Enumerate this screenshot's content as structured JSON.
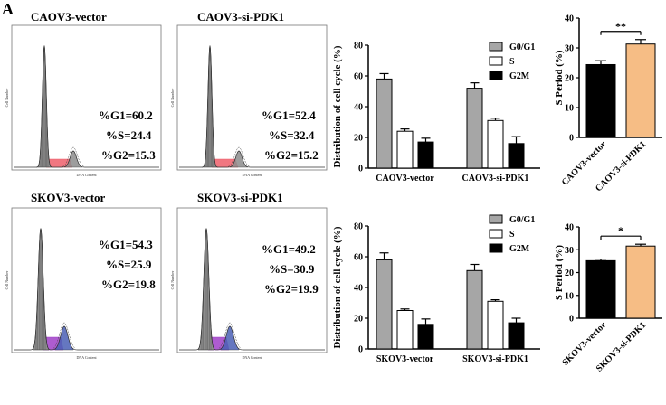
{
  "panel_letter": "A",
  "colors": {
    "g0g1": "#a6a6a6",
    "s": "#ffffff",
    "g2m": "#000000",
    "vector": "#000000",
    "pdk1": "#f6bd85",
    "peak": "#8c8c8c",
    "s_red": "#ee5f6b",
    "s_purple": "#a040c8",
    "g2_blue": "#4a5fb5"
  },
  "flow_panels": [
    {
      "title": "CAOV3-vector",
      "g1": "%G1=60.2",
      "s": "%S=24.4",
      "g2": "%G2=15.3",
      "y_label": "Cell Number",
      "x_label": "DNA Content"
    },
    {
      "title": "CAOV3-si-PDK1",
      "g1": "%G1=52.4",
      "s": "%S=32.4",
      "g2": "%G2=15.2",
      "y_label": "Cell Number",
      "x_label": "DNA Content"
    },
    {
      "title": "SKOV3-vector",
      "g1": "%G1=54.3",
      "s": "%S=25.9",
      "g2": "%G2=19.8",
      "y_label": "Cell Number",
      "x_label": "DNA Content"
    },
    {
      "title": "SKOV3-si-PDK1",
      "g1": "%G1=49.2",
      "s": "%S=30.9",
      "g2": "%G2=19.9",
      "y_label": "Cell Number",
      "x_label": "DNA Content"
    }
  ],
  "chart_data": [
    {
      "type": "bar",
      "ylabel": "Distribution of cell cycle (%)",
      "ylim": [
        0,
        80
      ],
      "yticks": [
        "0",
        "20",
        "40",
        "60",
        "80"
      ],
      "categories": [
        "CAOV3-vector",
        "CAOV3-si-PDK1"
      ],
      "series": [
        {
          "name": "G0/G1",
          "values": [
            58,
            52
          ],
          "errors": [
            3.5,
            3.5
          ]
        },
        {
          "name": "S",
          "values": [
            24,
            31
          ],
          "errors": [
            1.5,
            1.5
          ]
        },
        {
          "name": "G2M",
          "values": [
            17,
            16
          ],
          "errors": [
            2.5,
            4.5
          ]
        }
      ],
      "legend": [
        "G0/G1",
        "S",
        "G2M"
      ]
    },
    {
      "type": "bar",
      "ylabel": "S Period (%)",
      "ylim": [
        0,
        40
      ],
      "yticks": [
        "0",
        "10",
        "20",
        "30",
        "40"
      ],
      "categories": [
        "CAOV3-vector",
        "CAOV3-si-PDK1"
      ],
      "values": [
        24.4,
        31.3
      ],
      "errors": [
        1.3,
        1.5
      ],
      "significance": "**"
    },
    {
      "type": "bar",
      "ylabel": "Distribution of cell cycle (%)",
      "ylim": [
        0,
        80
      ],
      "yticks": [
        "0",
        "20",
        "40",
        "60",
        "80"
      ],
      "categories": [
        "SKOV3-vector",
        "SKOV3-si-PDK1"
      ],
      "series": [
        {
          "name": "G0/G1",
          "values": [
            58,
            51
          ],
          "errors": [
            4.5,
            4
          ]
        },
        {
          "name": "S",
          "values": [
            25,
            31
          ],
          "errors": [
            1,
            1
          ]
        },
        {
          "name": "G2M",
          "values": [
            16,
            17
          ],
          "errors": [
            3.5,
            3
          ]
        }
      ],
      "legend": [
        "G0/G1",
        "S",
        "G2M"
      ]
    },
    {
      "type": "bar",
      "ylabel": "S Period (%)",
      "ylim": [
        0,
        40
      ],
      "yticks": [
        "0",
        "10",
        "20",
        "30",
        "40"
      ],
      "categories": [
        "SKOV3-vector",
        "SKOV3-si-PDK1"
      ],
      "values": [
        25.2,
        31.6
      ],
      "errors": [
        0.7,
        0.8
      ],
      "significance": "*"
    }
  ]
}
